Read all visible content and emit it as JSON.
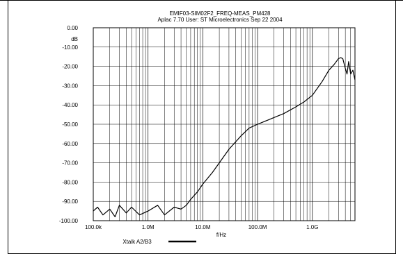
{
  "chart_data": {
    "type": "line",
    "title": "EMIF03-SIM02F2_FREQ-MEAS_PM428",
    "subtitle": "Aplac 7.70 User: ST Microelectronics  Sep 22 2004",
    "xlabel": "f/Hz",
    "ylabel": "dB",
    "x_scale": "log",
    "xlim": [
      100000,
      6000000000
    ],
    "ylim": [
      -100,
      0
    ],
    "grid": true,
    "x_ticks": [
      {
        "value": 100000,
        "label": "100.0k"
      },
      {
        "value": 1000000,
        "label": "1.0M"
      },
      {
        "value": 10000000,
        "label": "10.0M"
      },
      {
        "value": 100000000,
        "label": "100.0M"
      },
      {
        "value": 1000000000,
        "label": "1.0G"
      }
    ],
    "y_ticks": [
      {
        "value": 0,
        "label": "0.00"
      },
      {
        "value": -10,
        "label": "-10.00"
      },
      {
        "value": -20,
        "label": "-20.00"
      },
      {
        "value": -30,
        "label": "-30.00"
      },
      {
        "value": -40,
        "label": "-40.00"
      },
      {
        "value": -50,
        "label": "-50.00"
      },
      {
        "value": -60,
        "label": "-60.00"
      },
      {
        "value": -70,
        "label": "-70.00"
      },
      {
        "value": -80,
        "label": "-80.00"
      },
      {
        "value": -90,
        "label": "-90.00"
      },
      {
        "value": -100,
        "label": "-100.00"
      }
    ],
    "legend": {
      "label": "Xtalk A2/B3",
      "placement": "bottom"
    },
    "series": [
      {
        "name": "Xtalk A2/B3",
        "x": [
          100000,
          120000,
          150000,
          200000,
          250000,
          300000,
          400000,
          500000,
          700000,
          1000000,
          1500000,
          2000000,
          3000000,
          4000000,
          5000000,
          6000000,
          8000000,
          10000000,
          15000000,
          20000000,
          30000000,
          50000000,
          70000000,
          100000000,
          150000000,
          200000000,
          300000000,
          500000000,
          700000000,
          1000000000,
          1500000000,
          2000000000,
          2500000000,
          3000000000,
          3300000000,
          3600000000,
          4000000000,
          4300000000,
          4600000000,
          5000000000,
          5500000000,
          6000000000
        ],
        "y": [
          -95,
          -93,
          -97,
          -94,
          -98,
          -92,
          -96,
          -93,
          -97,
          -95,
          -92,
          -97,
          -93,
          -94,
          -92,
          -89,
          -85,
          -81,
          -75,
          -70,
          -63,
          -56,
          -52,
          -50,
          -48,
          -46.5,
          -44.5,
          -41,
          -38.5,
          -35,
          -28,
          -22,
          -19,
          -16,
          -15.5,
          -16,
          -21,
          -24,
          -17.5,
          -24,
          -22,
          -27
        ]
      }
    ]
  }
}
